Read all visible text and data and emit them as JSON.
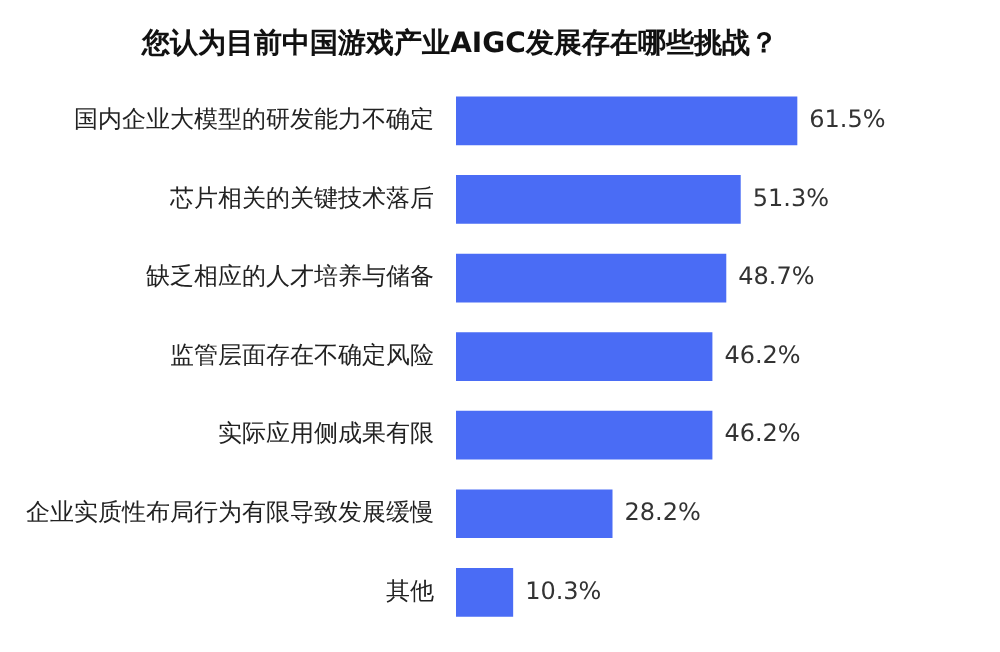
{
  "chart_data": {
    "type": "bar",
    "orientation": "horizontal",
    "title": "您认为目前中国游戏产业AIGC发展存在哪些挑战？",
    "categories": [
      "国内企业大模型的研发能力不确定",
      "芯片相关的关键技术落后",
      "缺乏相应的人才培养与储备",
      "监管层面存在不确定风险",
      "实际应用侧成果有限",
      "企业实质性布局行为有限导致发展缓慢",
      "其他"
    ],
    "values": [
      61.5,
      51.3,
      48.7,
      46.2,
      46.2,
      28.2,
      10.3
    ],
    "value_labels": [
      "61.5%",
      "51.3%",
      "48.7%",
      "46.2%",
      "46.2%",
      "28.2%",
      "10.3%"
    ],
    "color": "#4a6cf5",
    "legend": false
  }
}
